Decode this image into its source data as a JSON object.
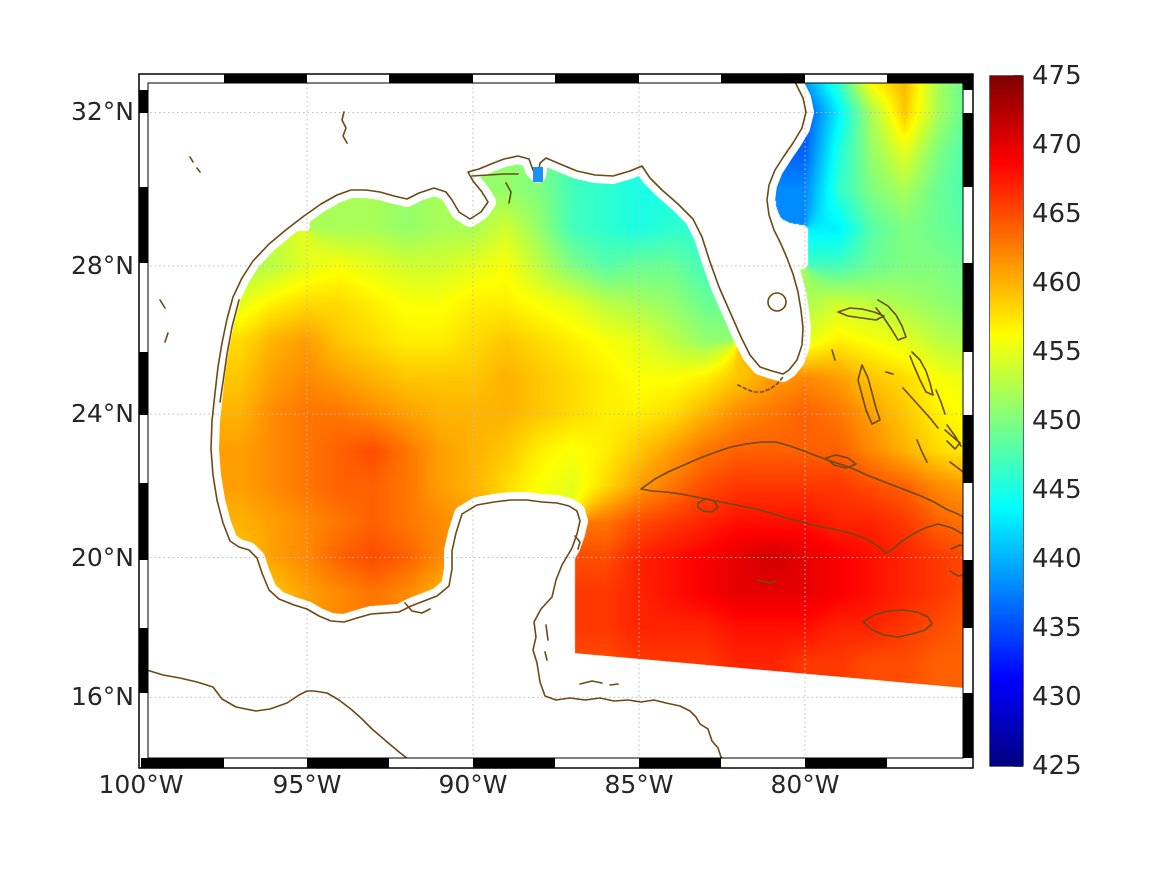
{
  "figure": {
    "background": "#ffffff",
    "description": "Mercator map heatmap of the Gulf of Mexico, Caribbean and western Atlantic with jet colorbar"
  },
  "map": {
    "projection": "mercator",
    "lat_ticks": [
      {
        "label": "32°N",
        "value": 32
      },
      {
        "label": "28°N",
        "value": 28
      },
      {
        "label": "24°N",
        "value": 24
      },
      {
        "label": "20°N",
        "value": 20
      },
      {
        "label": "16°N",
        "value": 16
      }
    ],
    "lon_ticks": [
      {
        "label": "100°W",
        "value": -100
      },
      {
        "label": "95°W",
        "value": -95
      },
      {
        "label": "90°W",
        "value": -90
      },
      {
        "label": "85°W",
        "value": -85
      },
      {
        "label": "80°W",
        "value": -80
      }
    ],
    "marker": {
      "lon": -88.1,
      "lat": 30.3,
      "color": "#1E90F5",
      "name": "station-marker"
    }
  },
  "colorbar": {
    "min": 425,
    "max": 475,
    "tick_step": 5,
    "tick_labels": [
      "425",
      "430",
      "435",
      "440",
      "445",
      "450",
      "455",
      "460",
      "465",
      "470",
      "475"
    ],
    "colormap": "jet"
  },
  "colors": {
    "coastline": "#6b4a14",
    "gridline": "#bdbdbd",
    "label": "#262626",
    "frame": "#000000",
    "land": "#ffffff"
  },
  "chart_data": {
    "type": "heatmap",
    "colormap": "jet",
    "clim": [
      425,
      475
    ],
    "lon_range": [
      -100,
      -75
    ],
    "lat_range": [
      14,
      33
    ],
    "lons": [
      -100,
      -99,
      -98,
      -97,
      -96,
      -95,
      -94,
      -93,
      -92,
      -91,
      -90,
      -89,
      -88,
      -87,
      -86,
      -85,
      -84,
      -83,
      -82,
      -81,
      -80,
      -79,
      -78,
      -77,
      -76,
      -75
    ],
    "lats": [
      33,
      32,
      31,
      30,
      29,
      28,
      27,
      26,
      25,
      24,
      23,
      22,
      21,
      20,
      19,
      18,
      17,
      16,
      15,
      14
    ],
    "values": [
      [
        null,
        null,
        null,
        null,
        null,
        null,
        null,
        null,
        null,
        null,
        null,
        null,
        null,
        null,
        null,
        null,
        null,
        null,
        null,
        null,
        440,
        447,
        458,
        460,
        452,
        448
      ],
      [
        null,
        null,
        null,
        null,
        null,
        null,
        null,
        null,
        null,
        null,
        null,
        null,
        null,
        null,
        null,
        null,
        null,
        null,
        null,
        null,
        435,
        443,
        452,
        459,
        452,
        448
      ],
      [
        null,
        null,
        null,
        null,
        null,
        null,
        null,
        null,
        null,
        null,
        null,
        null,
        null,
        null,
        null,
        null,
        null,
        null,
        null,
        null,
        436,
        445,
        451,
        455,
        450,
        447
      ],
      [
        null,
        null,
        null,
        null,
        null,
        null,
        null,
        null,
        null,
        null,
        null,
        451,
        450,
        447,
        446,
        445,
        445,
        null,
        null,
        null,
        438,
        446,
        450,
        452,
        449,
        447
      ],
      [
        null,
        null,
        null,
        null,
        null,
        null,
        452,
        452,
        451,
        452,
        452,
        454,
        451,
        447,
        446,
        445,
        446,
        446,
        null,
        null,
        null,
        443,
        448,
        450,
        449,
        448
      ],
      [
        null,
        null,
        null,
        452,
        453,
        455,
        456,
        455,
        454,
        454,
        455,
        456,
        453,
        450,
        448,
        449,
        449,
        447,
        null,
        null,
        null,
        447,
        449,
        450,
        450,
        449
      ],
      [
        null,
        null,
        null,
        455,
        457,
        458,
        458,
        457,
        456,
        456,
        457,
        457,
        456,
        455,
        453,
        452,
        451,
        449,
        null,
        null,
        452,
        454,
        453,
        452,
        451,
        450
      ],
      [
        null,
        null,
        null,
        458,
        460,
        461,
        459,
        458,
        457,
        457,
        458,
        459,
        458,
        457,
        456,
        455,
        453,
        451,
        null,
        null,
        455,
        457,
        456,
        455,
        453,
        452
      ],
      [
        null,
        null,
        null,
        459,
        461,
        462,
        461,
        460,
        459,
        459,
        459,
        460,
        459,
        458,
        457,
        456,
        456,
        457,
        459,
        461,
        462,
        461,
        459,
        458,
        456,
        455
      ],
      [
        null,
        null,
        null,
        460,
        462,
        463,
        463,
        462,
        461,
        460,
        460,
        460,
        459,
        458,
        457,
        457,
        458,
        460,
        462,
        463,
        464,
        463,
        461,
        459,
        457,
        456
      ],
      [
        null,
        null,
        null,
        461,
        462,
        463,
        464,
        465,
        463,
        461,
        460,
        459,
        457,
        456,
        457,
        459,
        461,
        463,
        464,
        464,
        464,
        464,
        462,
        460,
        458,
        457
      ],
      [
        null,
        null,
        null,
        461,
        462,
        463,
        464,
        464,
        463,
        461,
        460,
        458,
        456,
        455,
        458,
        461,
        463,
        465,
        466,
        466,
        466,
        466,
        465,
        464,
        462,
        461
      ],
      [
        null,
        null,
        null,
        460,
        461,
        462,
        463,
        464,
        463,
        462,
        461,
        null,
        null,
        null,
        463,
        465,
        466,
        467,
        468,
        468,
        468,
        467,
        467,
        466,
        464,
        463
      ],
      [
        null,
        null,
        null,
        459,
        461,
        462,
        464,
        465,
        464,
        462,
        null,
        null,
        null,
        null,
        465,
        467,
        468,
        469,
        470,
        471,
        470,
        469,
        468,
        467,
        466,
        465
      ],
      [
        null,
        null,
        null,
        null,
        459,
        461,
        462,
        463,
        462,
        460,
        null,
        null,
        null,
        null,
        466,
        467,
        468,
        469,
        470,
        470,
        470,
        469,
        468,
        467,
        466,
        465
      ],
      [
        null,
        null,
        null,
        null,
        null,
        null,
        null,
        null,
        null,
        null,
        null,
        null,
        null,
        null,
        466,
        467,
        467,
        467,
        468,
        468,
        468,
        467,
        467,
        466,
        465,
        464
      ],
      [
        null,
        null,
        null,
        null,
        null,
        null,
        null,
        null,
        null,
        null,
        null,
        null,
        null,
        null,
        465,
        466,
        466,
        466,
        467,
        467,
        466,
        466,
        465,
        465,
        464,
        464
      ],
      [
        null,
        null,
        null,
        null,
        null,
        null,
        null,
        null,
        null,
        null,
        null,
        null,
        null,
        null,
        null,
        null,
        null,
        null,
        null,
        null,
        null,
        null,
        null,
        null,
        null,
        null
      ],
      [
        null,
        null,
        null,
        null,
        null,
        null,
        null,
        null,
        null,
        null,
        null,
        null,
        null,
        null,
        null,
        null,
        null,
        null,
        null,
        null,
        null,
        null,
        null,
        null,
        null,
        null
      ],
      [
        null,
        null,
        null,
        null,
        null,
        null,
        null,
        null,
        null,
        null,
        null,
        null,
        null,
        null,
        null,
        null,
        null,
        null,
        null,
        null,
        null,
        null,
        null,
        null,
        null,
        null
      ]
    ]
  }
}
